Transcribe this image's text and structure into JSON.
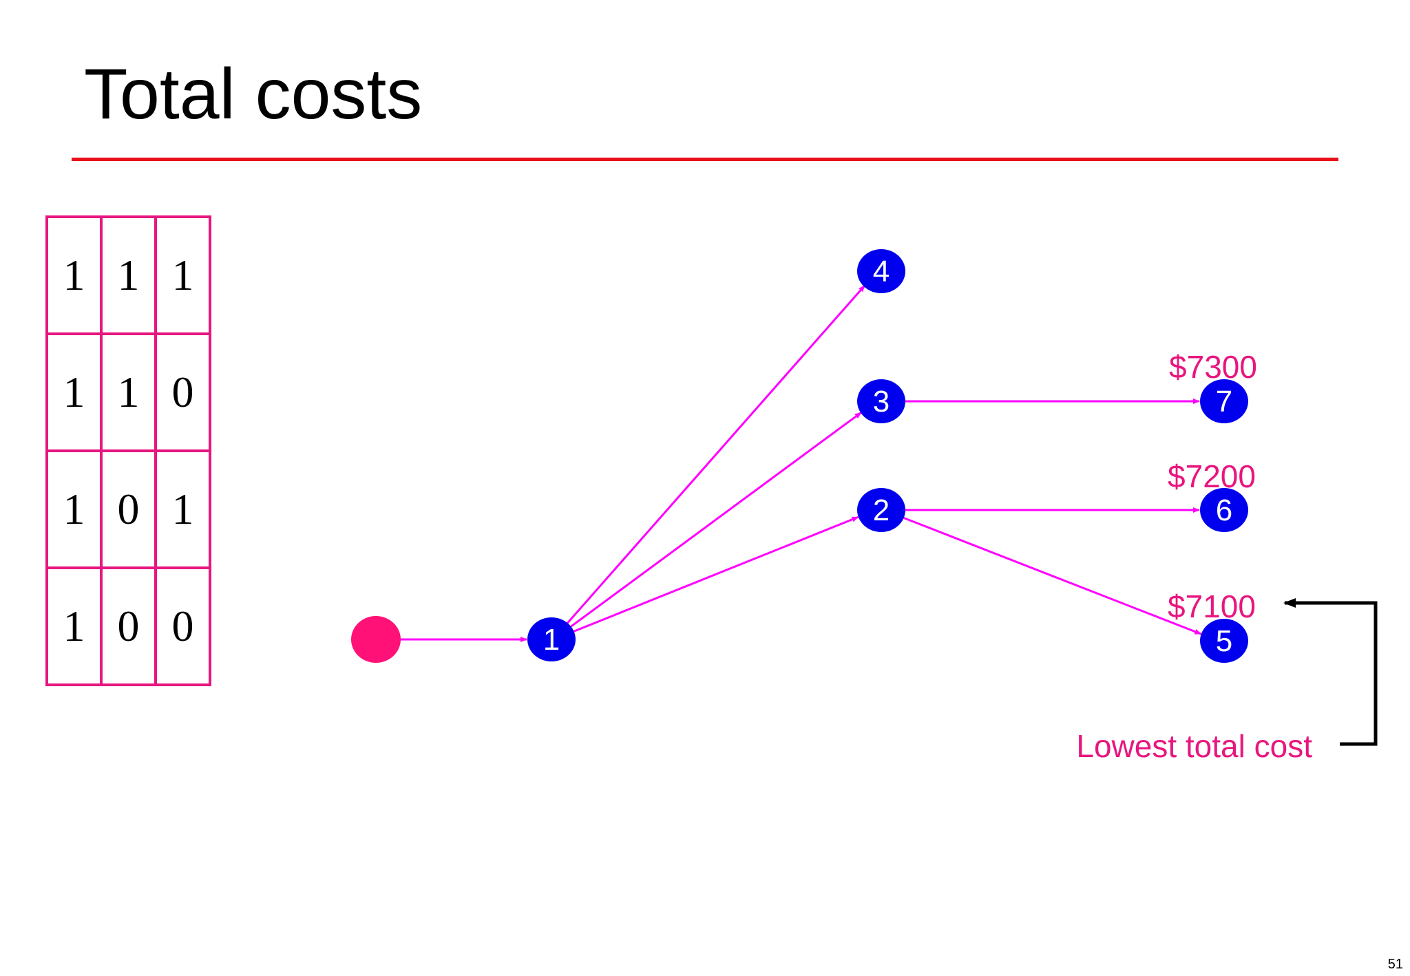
{
  "slide": {
    "title": "Total costs",
    "page_number": "51"
  },
  "matrix": {
    "rows": [
      [
        "1",
        "1",
        "1"
      ],
      [
        "1",
        "1",
        "0"
      ],
      [
        "1",
        "0",
        "1"
      ],
      [
        "1",
        "0",
        "0"
      ]
    ]
  },
  "tree": {
    "root_color": "#ff1177",
    "node_color": "#0000ee",
    "edge_color": "#ff00ff",
    "nodes": [
      {
        "id": "1",
        "label": "1"
      },
      {
        "id": "2",
        "label": "2"
      },
      {
        "id": "3",
        "label": "3"
      },
      {
        "id": "4",
        "label": "4"
      },
      {
        "id": "5",
        "label": "5"
      },
      {
        "id": "6",
        "label": "6"
      },
      {
        "id": "7",
        "label": "7"
      }
    ],
    "edges": [
      {
        "from": "root",
        "to": "1"
      },
      {
        "from": "1",
        "to": "2"
      },
      {
        "from": "1",
        "to": "3"
      },
      {
        "from": "1",
        "to": "4"
      },
      {
        "from": "2",
        "to": "5"
      },
      {
        "from": "2",
        "to": "6"
      },
      {
        "from": "3",
        "to": "7"
      }
    ],
    "costs": [
      {
        "node": "7",
        "label": "$7300"
      },
      {
        "node": "6",
        "label": "$7200"
      },
      {
        "node": "5",
        "label": "$7100"
      }
    ]
  },
  "annotation": {
    "text": "Lowest total cost",
    "points_to": "5"
  }
}
